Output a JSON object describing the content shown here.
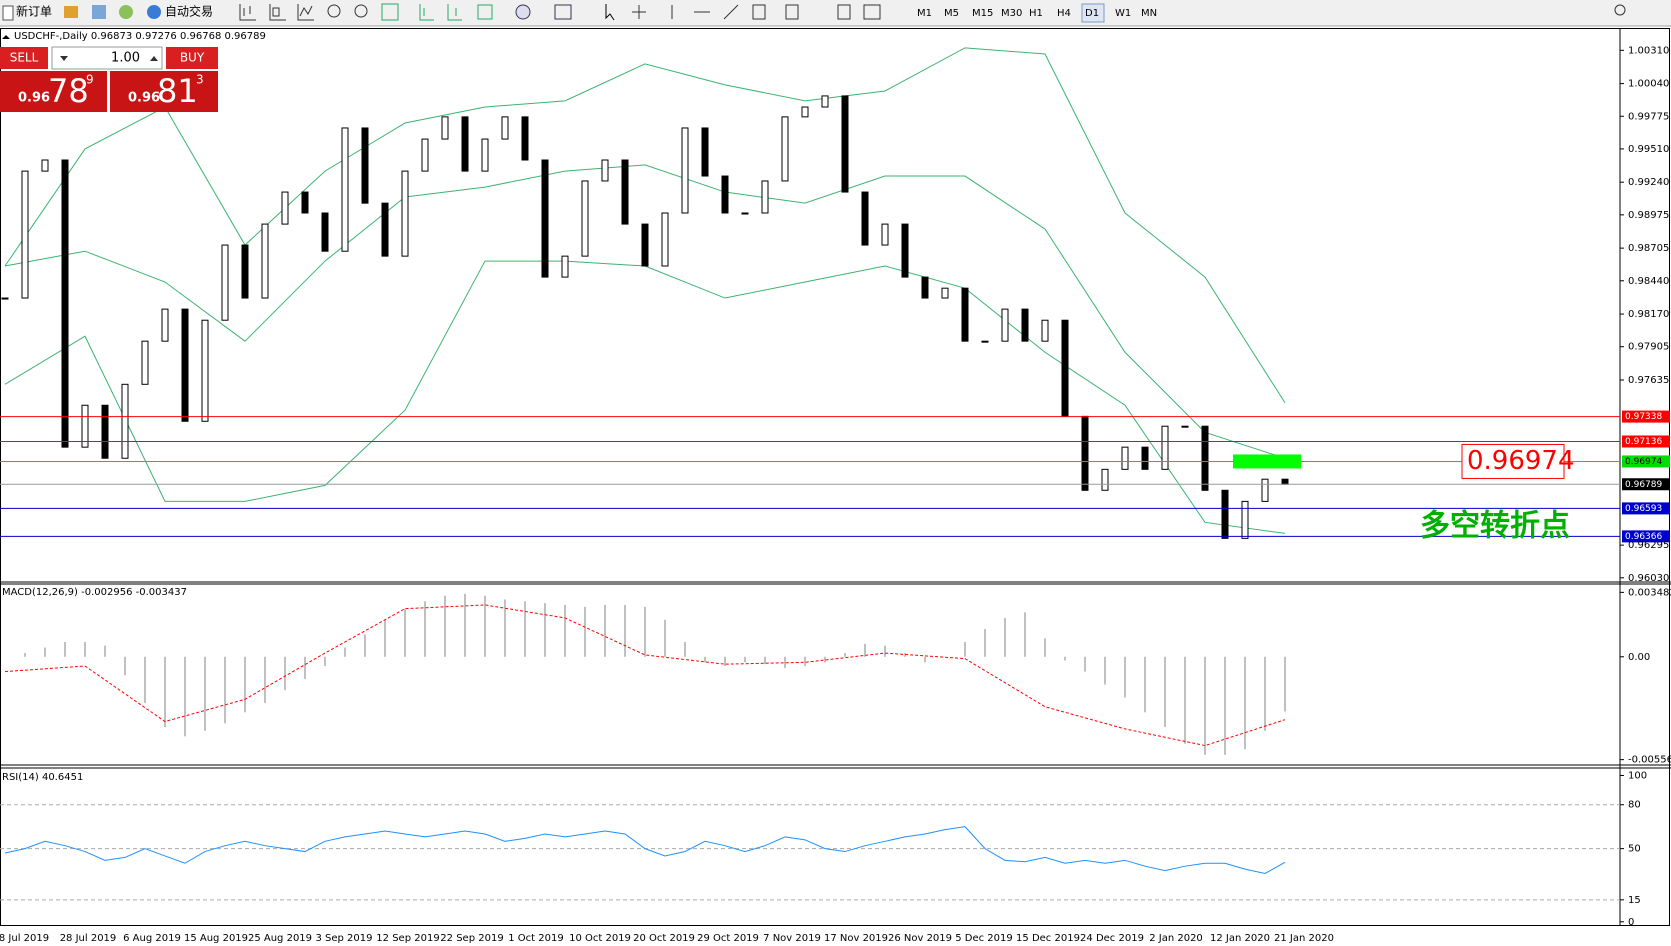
{
  "toolbar": {
    "new_order": "新订单",
    "auto_trade": "自动交易",
    "timeframes": [
      "M1",
      "M5",
      "M15",
      "M30",
      "H1",
      "H4",
      "D1",
      "W1",
      "MN"
    ],
    "active_timeframe": 6
  },
  "trade_panel": {
    "sell": "SELL",
    "lots": "1.00",
    "buy": "BUY",
    "bid": {
      "prefix": "0.96",
      "big": "78",
      "small": "9"
    },
    "ask": {
      "prefix": "0.96",
      "big": "81",
      "small": "3"
    }
  },
  "chart_data": [
    {
      "type": "candlestick",
      "title": "USDCHF-,Daily  0.96873 0.97276 0.96768 0.96789",
      "close": [
        0.983,
        0.9933,
        0.9942,
        0.9709,
        0.9743,
        0.97,
        0.976,
        0.9795,
        0.9821,
        0.973,
        0.9812,
        0.9873,
        0.983,
        0.989,
        0.9916,
        0.9899,
        0.9868,
        0.9968,
        0.9907,
        0.9864,
        0.9933,
        0.9959,
        0.9977,
        0.9933,
        0.9959,
        0.9977,
        0.9942,
        0.9847,
        0.9864,
        0.9925,
        0.9942,
        0.989,
        0.9856,
        0.9899,
        0.9968,
        0.9929,
        0.9899,
        0.9899,
        0.9925,
        0.9977,
        0.9985,
        0.9994,
        0.9916,
        0.9873,
        0.989,
        0.9847,
        0.983,
        0.9838,
        0.9795,
        0.9795,
        0.9821,
        0.9795,
        0.9812,
        0.9734,
        0.9674,
        0.9691,
        0.9709,
        0.9691,
        0.9726,
        0.9726,
        0.9674,
        0.9635,
        0.9665,
        0.9683,
        0.96789
      ],
      "bands": [
        {
          "color": "#3cb371",
          "values": [
            0.9856,
            0.9951,
            0.9985,
            0.9873,
            0.9933,
            0.9972,
            0.9985,
            0.999,
            1.002,
            1.0003,
            0.999,
            0.9998,
            1.0033,
            1.0028,
            0.9899,
            0.9847,
            0.9745
          ]
        },
        {
          "color": "#3cb371",
          "values": [
            0.9856,
            0.9868,
            0.9843,
            0.9795,
            0.986,
            0.9912,
            0.992,
            0.9933,
            0.9938,
            0.9916,
            0.9907,
            0.9929,
            0.9929,
            0.9886,
            0.9786,
            0.9721,
            0.97
          ]
        },
        {
          "color": "#3cb371",
          "values": [
            0.976,
            0.9799,
            0.9665,
            0.9665,
            0.9678,
            0.9739,
            0.986,
            0.986,
            0.9856,
            0.983,
            0.9843,
            0.9856,
            0.9838,
            0.9786,
            0.9743,
            0.9648,
            0.9639
          ]
        }
      ],
      "levels": [
        {
          "value": 0.97338,
          "color": "#ff0000"
        },
        {
          "value": 0.97136,
          "color": "#ff0000"
        },
        {
          "value": 0.96974,
          "color": "#00dd00"
        },
        {
          "value": 0.96789,
          "color": "#999999"
        },
        {
          "value": 0.96593,
          "color": "#0000cc"
        },
        {
          "value": 0.96366,
          "color": "#0000cc"
        }
      ],
      "ylim": [
        0.96004,
        1.00483
      ],
      "yticks": [
        {
          "value": 1.0031,
          "label": "1.00310"
        },
        {
          "value": 1.0004,
          "label": "1.00040"
        },
        0.99775,
        {
          "value": 0.9951,
          "label": "0.99510"
        },
        {
          "value": 0.9924,
          "label": "0.99240"
        },
        0.98975,
        0.98705,
        {
          "value": 0.9844,
          "label": "0.98440"
        },
        {
          "value": 0.9817,
          "label": "0.98170"
        },
        0.97905,
        0.97635,
        0.96295,
        {
          "value": 0.9603,
          "label": "0.96030"
        }
      ],
      "annotations": [
        {
          "text": "0.96974",
          "color": "#ff0000"
        },
        {
          "text": "多空转折点",
          "color": "#00b000"
        }
      ],
      "zone_color": "#00ff00"
    },
    {
      "type": "macd",
      "title": "MACD(12,26,9) -0.002956 -0.003437",
      "values": [
        0.0,
        0.0002,
        0.0005,
        0.0008,
        0.0008,
        0.0006,
        -0.001,
        -0.0025,
        -0.0038,
        -0.0043,
        -0.004,
        -0.0036,
        -0.003,
        -0.0025,
        -0.0018,
        -0.0012,
        -0.0005,
        0.0005,
        0.0012,
        0.002,
        0.0026,
        0.003,
        0.0033,
        0.0034,
        0.0033,
        0.0031,
        0.003,
        0.0029,
        0.0028,
        0.0027,
        0.0028,
        0.0028,
        0.0027,
        0.002,
        0.0008,
        -0.0003,
        -0.0005,
        -0.0003,
        -0.0004,
        -0.0006,
        -0.0005,
        -0.0003,
        0.0002,
        0.0007,
        0.0006,
        0.0002,
        -0.0003,
        0.0,
        0.0008,
        0.0015,
        0.0021,
        0.0024,
        0.001,
        -0.0002,
        -0.0008,
        -0.0015,
        -0.0022,
        -0.003,
        -0.0038,
        -0.0047,
        -0.0053,
        -0.0053,
        -0.005,
        -0.004,
        -0.002956
      ],
      "color": "#c0c0c0",
      "signal": [
        -0.0008,
        -0.0005,
        -0.0035,
        -0.0023,
        0.0002,
        0.0026,
        0.0028,
        0.0021,
        0.0001,
        -0.0004,
        -0.0003,
        0.0002,
        -0.0001,
        -0.0027,
        -0.0039,
        -0.0048,
        -0.0034
      ],
      "signal_color": "#ff0000",
      "ylim": [
        -0.00585,
        0.00388
      ],
      "yticks": [
        0.003482,
        {
          "value": 0,
          "label": "0.00"
        },
        -0.00556
      ]
    },
    {
      "type": "line",
      "title": "RSI(14) 40.6451",
      "values": [
        47,
        50,
        55,
        52,
        48,
        42,
        44,
        50,
        45,
        40,
        48,
        52,
        55,
        52,
        50,
        48,
        55,
        58,
        60,
        62,
        60,
        58,
        60,
        62,
        60,
        55,
        57,
        60,
        58,
        60,
        62,
        60,
        50,
        45,
        48,
        55,
        52,
        48,
        52,
        58,
        56,
        50,
        48,
        52,
        55,
        58,
        60,
        63,
        65,
        50,
        42,
        41,
        44,
        40,
        42,
        40,
        42,
        38,
        35,
        38,
        40,
        40,
        36,
        33,
        40.6451
      ],
      "color": "#1e90ff",
      "levels": [
        80,
        50,
        15
      ],
      "ylim": [
        -2.2,
        105.1
      ],
      "yticks": [
        100,
        80,
        50,
        15,
        0
      ],
      "date_labels": [
        "8 Jul 2019",
        "28 Jul 2019",
        "6 Aug 2019",
        "15 Aug 2019",
        "25 Aug 2019",
        "3 Sep 2019",
        "12 Sep 2019",
        "22 Sep 2019",
        "1 Oct 2019",
        "10 Oct 2019",
        "20 Oct 2019",
        "29 Oct 2019",
        "7 Nov 2019",
        "17 Nov 2019",
        "26 Nov 2019",
        "5 Dec 2019",
        "15 Dec 2019",
        "24 Dec 2019",
        "2 Jan 2020",
        "12 Jan 2020",
        "21 Jan 2020"
      ]
    }
  ]
}
